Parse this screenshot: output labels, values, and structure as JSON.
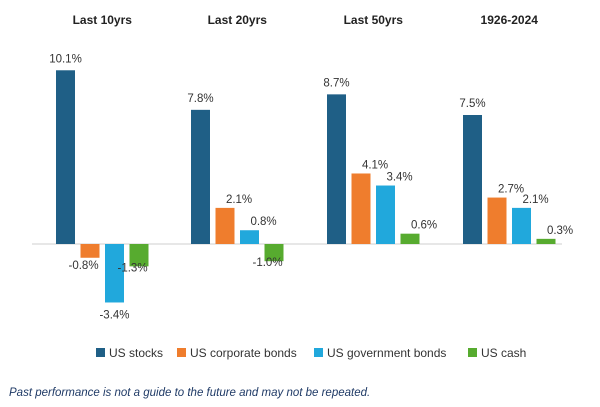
{
  "chart_data": {
    "type": "bar",
    "title": "",
    "xlabel": "",
    "ylabel": "",
    "grid": false,
    "legend_position": "bottom",
    "unit": "%",
    "categories": [
      "Last 10yrs",
      "Last 20yrs",
      "Last 50yrs",
      "1926-2024"
    ],
    "series": [
      {
        "name": "US stocks",
        "color": "#1f5f86",
        "values": [
          10.1,
          7.8,
          8.7,
          7.5
        ]
      },
      {
        "name": "US corporate bonds",
        "color": "#ef7d2d",
        "values": [
          -0.8,
          2.1,
          4.1,
          2.7
        ]
      },
      {
        "name": "US government bonds",
        "color": "#21a8dc",
        "values": [
          -3.4,
          0.8,
          3.4,
          2.1
        ]
      },
      {
        "name": "US cash",
        "color": "#57ab2f",
        "values": [
          -1.3,
          -1.0,
          0.6,
          0.3
        ]
      }
    ]
  },
  "footnote": "Past performance is not a guide to the future and may not be repeated."
}
